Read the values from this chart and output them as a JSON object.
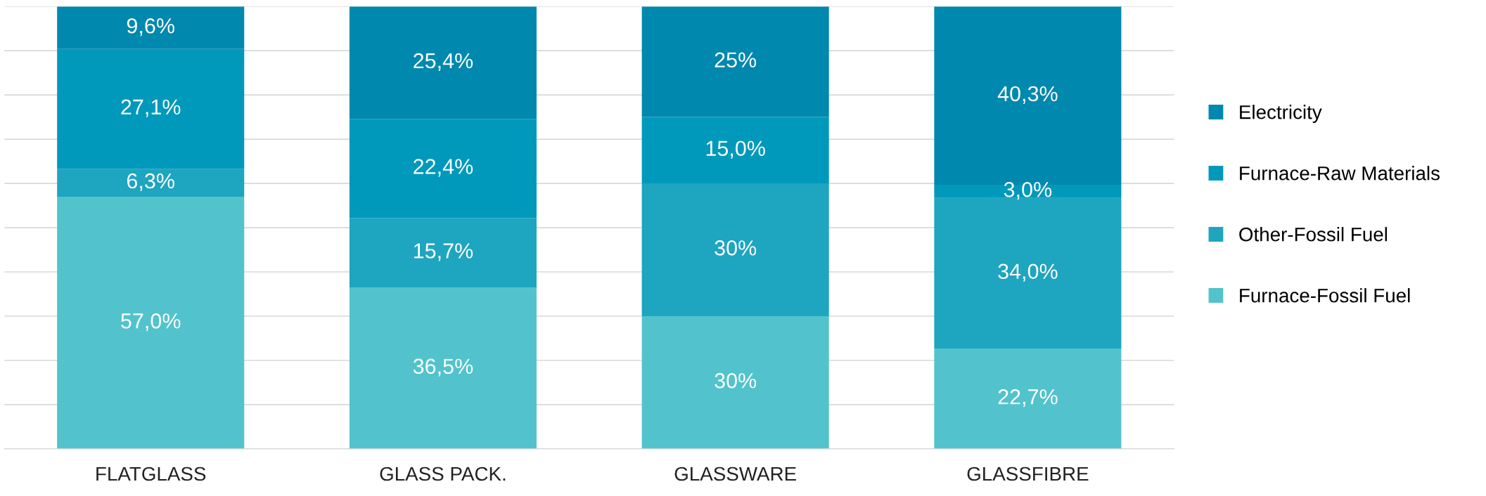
{
  "chart_data": {
    "type": "bar",
    "stacked": true,
    "categories": [
      "FLATGLASS",
      "GLASS PACK.",
      "GLASSWARE",
      "GLASSFIBRE"
    ],
    "series": [
      {
        "name": "Furnace-Fossil Fuel",
        "color": "#52c3cc",
        "values": [
          57.0,
          36.5,
          30,
          22.7
        ],
        "value_labels": [
          "57,0%",
          "36,5%",
          "30%",
          "22,7%"
        ]
      },
      {
        "name": "Other-Fossil Fuel",
        "color": "#1ea5bf",
        "values": [
          6.3,
          15.7,
          30,
          34.0
        ],
        "value_labels": [
          "6,3%",
          "15,7%",
          "30%",
          "34,0%"
        ]
      },
      {
        "name": "Furnace-Raw Materials",
        "color": "#0099bb",
        "values": [
          27.1,
          22.4,
          15.0,
          3.0
        ],
        "value_labels": [
          "27,1%",
          "22,4%",
          "15,0%",
          "3,0%"
        ]
      },
      {
        "name": "Electricity",
        "color": "#0088ae",
        "values": [
          9.6,
          25.4,
          25,
          40.3
        ],
        "value_labels": [
          "9,6%",
          "25,4%",
          "25%",
          "40,3%"
        ]
      }
    ],
    "ylim": [
      0,
      100
    ],
    "yticks": [
      {
        "value": 0,
        "label": null
      },
      {
        "value": 10,
        "label": null
      },
      {
        "value": 20,
        "label": null
      },
      {
        "value": 30,
        "label": null
      },
      {
        "value": 40,
        "label": null
      },
      {
        "value": 50,
        "label": null
      },
      {
        "value": 60,
        "label": null
      },
      {
        "value": 70,
        "label": null
      },
      {
        "value": 80,
        "label": null
      },
      {
        "value": 90,
        "label": null
      },
      {
        "value": 100,
        "label": null
      }
    ],
    "tick_labels": "x",
    "grid": "y",
    "legend": "right"
  }
}
